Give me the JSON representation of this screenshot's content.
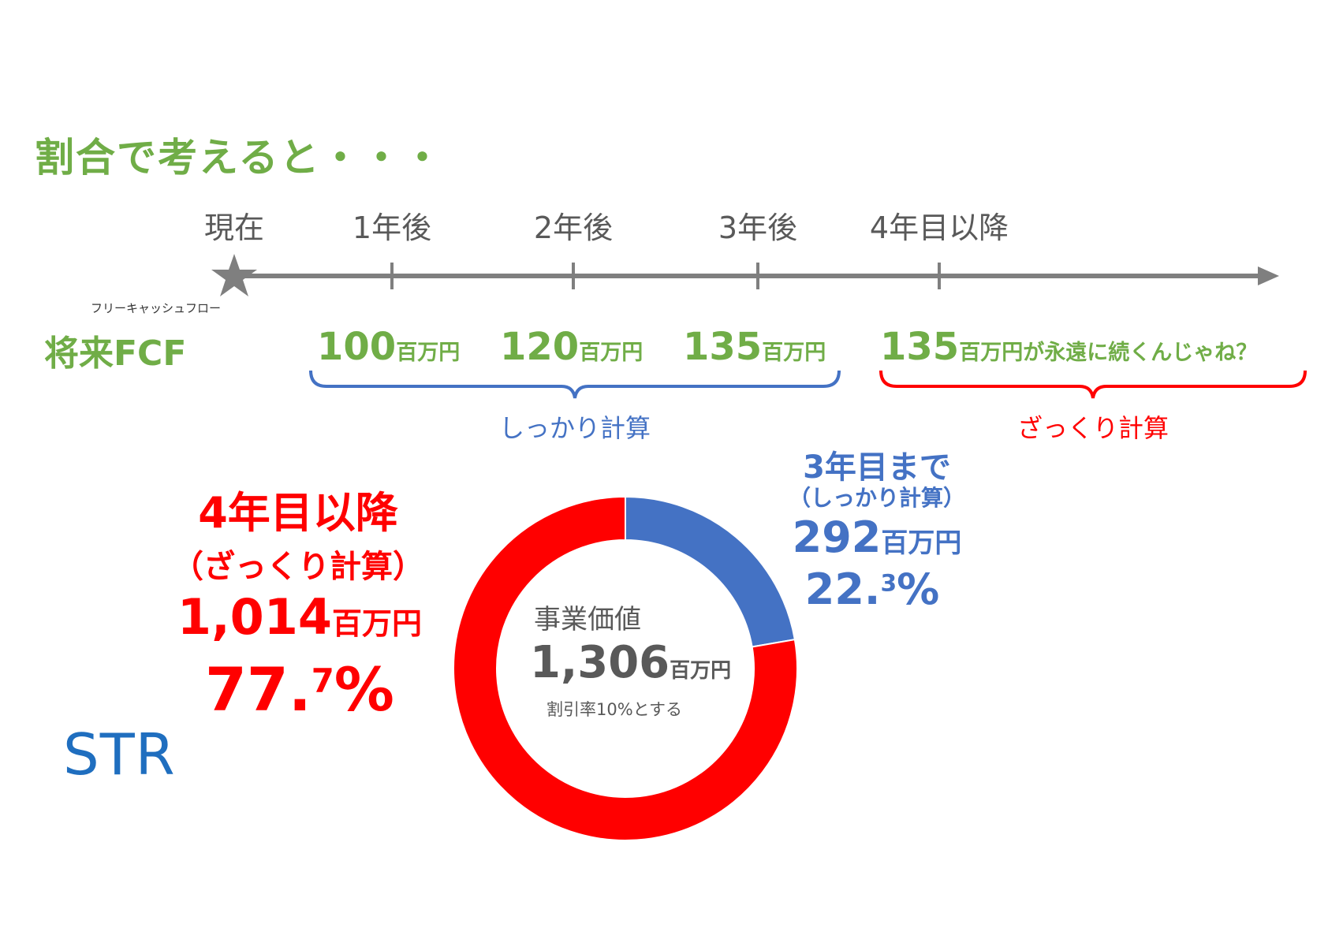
{
  "title": "割合で考えると・・・",
  "timeline": {
    "labels": [
      "現在",
      "1年後",
      "2年後",
      "3年後",
      "4年目以降"
    ]
  },
  "fcf": {
    "ruby": "フリーキャッシュフロー",
    "label": "将来FCF",
    "values": [
      {
        "num": "100",
        "unit": "百万円"
      },
      {
        "num": "120",
        "unit": "百万円"
      },
      {
        "num": "135",
        "unit": "百万円"
      }
    ],
    "forever": {
      "num": "135",
      "unit": "百万円が永遠に続くんじゃね？"
    }
  },
  "braces": {
    "careful": "しっかり計算",
    "rough": "ざっくり計算"
  },
  "left_block": {
    "heading": "4年目以降",
    "sub": "（ざっくり計算）",
    "amount_num": "1,014",
    "amount_unit": "百万円",
    "pct_main": "77.",
    "pct_sup": "7",
    "pct_sign": "%"
  },
  "right_block": {
    "heading": "3年目まで",
    "sub": "（しっかり計算）",
    "amount_num": "292",
    "amount_unit": "百万円",
    "pct_main": "22.",
    "pct_sup": "3",
    "pct_sign": "%"
  },
  "center": {
    "label": "事業価値",
    "amount_num": "1,306",
    "amount_unit": "百万円",
    "note": "割引率10%とする"
  },
  "logo": "STR",
  "chart_data": {
    "type": "pie",
    "donut": true,
    "categories": [
      "3年目まで（しっかり計算）",
      "4年目以降（ざっくり計算）"
    ],
    "values": [
      22.3,
      77.7
    ],
    "amounts": [
      292,
      1014
    ],
    "colors": [
      "#4472C4",
      "#FF0000"
    ],
    "total": 1306
  },
  "colors": {
    "green": "#70AD47",
    "blue": "#4472C4",
    "red": "#FF0000",
    "gray": "#7F7F7F"
  }
}
